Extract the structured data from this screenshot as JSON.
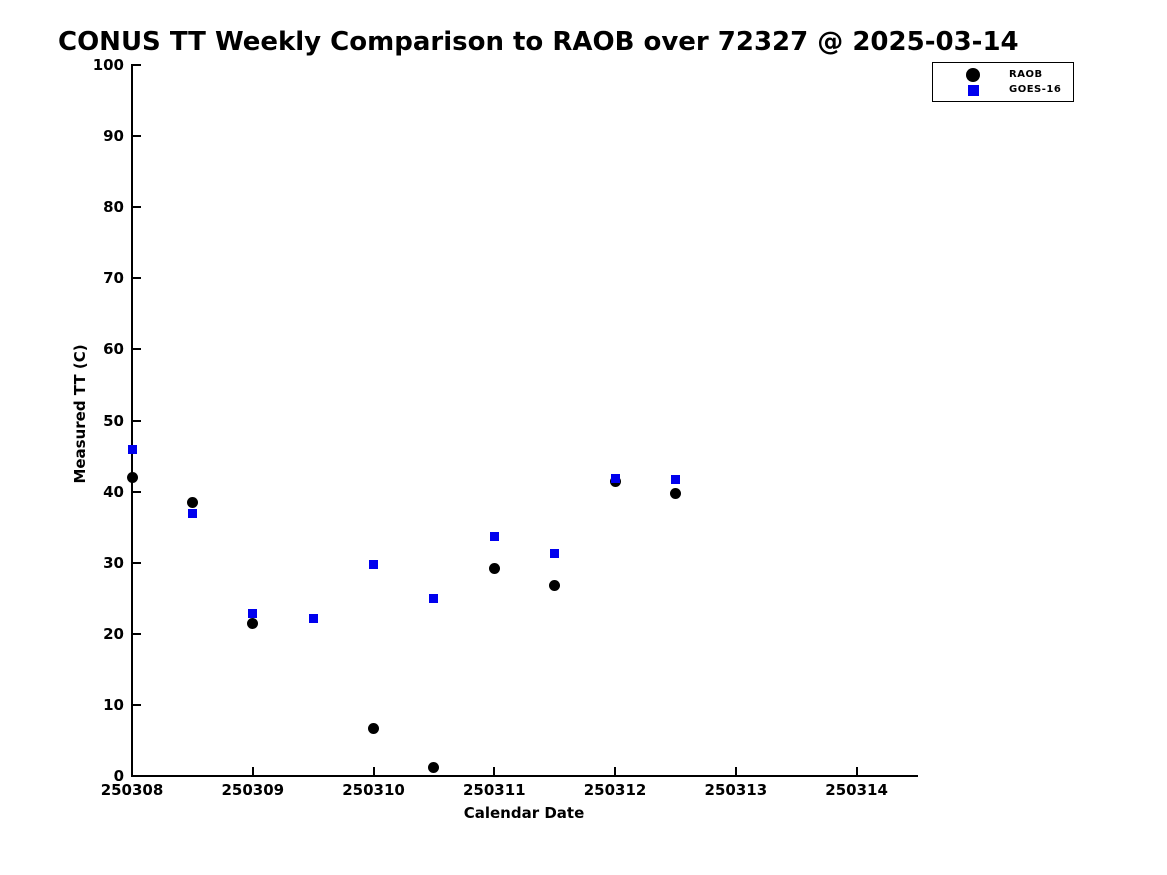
{
  "chart_data": {
    "type": "scatter",
    "title": "CONUS TT Weekly Comparison to RAOB over 72327 @ 2025-03-14",
    "xlabel": "Calendar Date",
    "ylabel": "Measured TT (C)",
    "xlim": [
      250308,
      250314.5
    ],
    "ylim": [
      0,
      100
    ],
    "x_ticks": [
      250308,
      250309,
      250310,
      250311,
      250312,
      250313,
      250314
    ],
    "x_tick_labels": [
      "250308",
      "250309",
      "250310",
      "250311",
      "250312",
      "250313",
      "250314"
    ],
    "y_ticks": [
      0,
      10,
      20,
      30,
      40,
      50,
      60,
      70,
      80,
      90,
      100
    ],
    "y_tick_labels": [
      "0",
      "10",
      "20",
      "30",
      "40",
      "50",
      "60",
      "70",
      "80",
      "90",
      "100"
    ],
    "grid": false,
    "legend": {
      "position": "top-right-outside",
      "entries": [
        "RAOB",
        "GOES-16"
      ]
    },
    "colors": {
      "raob": "#000000",
      "goes16": "#0000ee",
      "axis": "#000000",
      "background": "#ffffff"
    },
    "series": [
      {
        "name": "RAOB",
        "marker": "circle",
        "color": "#000000",
        "points": [
          [
            250308.0,
            42.0
          ],
          [
            250308.5,
            38.4
          ],
          [
            250309.0,
            21.5
          ],
          [
            250310.0,
            6.7
          ],
          [
            250310.5,
            1.2
          ],
          [
            250311.0,
            29.2
          ],
          [
            250311.5,
            26.8
          ],
          [
            250312.0,
            41.4
          ],
          [
            250312.5,
            39.7
          ]
        ]
      },
      {
        "name": "GOES-16",
        "marker": "square",
        "color": "#0000ee",
        "points": [
          [
            250308.0,
            45.9
          ],
          [
            250308.5,
            36.9
          ],
          [
            250309.0,
            22.9
          ],
          [
            250309.5,
            22.2
          ],
          [
            250310.0,
            29.7
          ],
          [
            250310.5,
            24.9
          ],
          [
            250311.0,
            33.7
          ],
          [
            250311.5,
            31.3
          ],
          [
            250312.0,
            41.8
          ],
          [
            250312.5,
            41.7
          ]
        ]
      }
    ]
  }
}
